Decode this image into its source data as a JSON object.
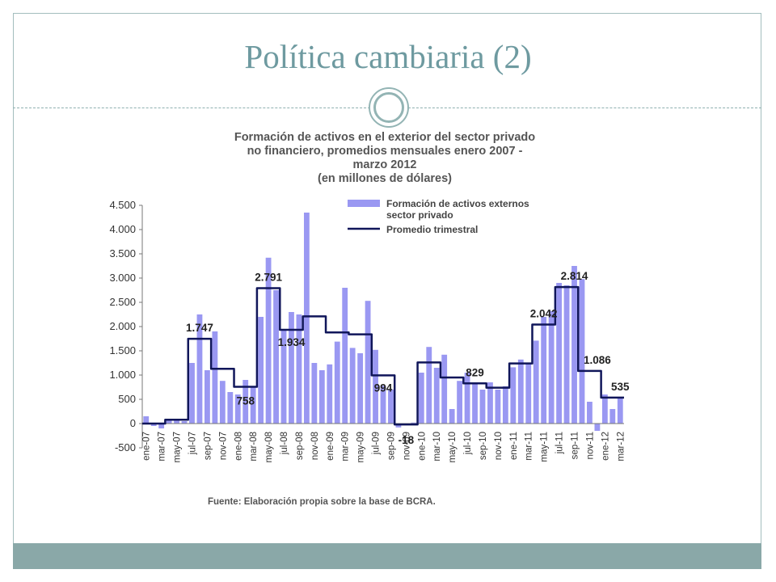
{
  "slide": {
    "title": "Política cambiaria (2)"
  },
  "colors": {
    "frame": "#a3bdbd",
    "title": "#6e9aa0",
    "footer_bar": "#8aa8a8",
    "bar": "#9a98f2",
    "line": "#10165a"
  },
  "chart_data": {
    "type": "bar",
    "title_lines": [
      "Formación de activos en el exterior del sector privado",
      "no financiero, promedios mensuales enero 2007 -",
      "marzo 2012",
      "(en millones de dólares)"
    ],
    "source": "Fuente: Elaboración propia sobre la base de BCRA.",
    "ylim": [
      -500,
      4500
    ],
    "yticks": [
      -500,
      0,
      500,
      1000,
      1500,
      2000,
      2500,
      3000,
      3500,
      4000,
      4500
    ],
    "ytick_labels": [
      "-500",
      "0",
      "500",
      "1.000",
      "1.500",
      "2.000",
      "2.500",
      "3.000",
      "3.500",
      "4.000",
      "4.500"
    ],
    "legend_position": "top-right",
    "categories": [
      "ene-07",
      "feb-07",
      "mar-07",
      "abr-07",
      "may-07",
      "jun-07",
      "jul-07",
      "ago-07",
      "sep-07",
      "oct-07",
      "nov-07",
      "dic-07",
      "ene-08",
      "feb-08",
      "mar-08",
      "abr-08",
      "may-08",
      "jun-08",
      "jul-08",
      "ago-08",
      "sep-08",
      "oct-08",
      "nov-08",
      "dic-08",
      "ene-09",
      "feb-09",
      "mar-09",
      "abr-09",
      "may-09",
      "jun-09",
      "jul-09",
      "ago-09",
      "sep-09",
      "oct-09",
      "nov-09",
      "dic-09",
      "ene-10",
      "feb-10",
      "mar-10",
      "abr-10",
      "may-10",
      "jun-10",
      "jul-10",
      "ago-10",
      "sep-10",
      "oct-10",
      "nov-10",
      "dic-10",
      "ene-11",
      "feb-11",
      "mar-11",
      "abr-11",
      "may-11",
      "jun-11",
      "jul-11",
      "ago-11",
      "sep-11",
      "oct-11",
      "nov-11",
      "dic-11",
      "ene-12",
      "feb-12",
      "mar-12"
    ],
    "x_tick_labels": [
      "ene-07",
      "mar-07",
      "may-07",
      "jul-07",
      "sep-07",
      "nov-07",
      "ene-08",
      "mar-08",
      "may-08",
      "jul-08",
      "sep-08",
      "nov-08",
      "ene-09",
      "mar-09",
      "may-09",
      "jul-09",
      "sep-09",
      "nov-09",
      "ene-10",
      "mar-10",
      "may-10",
      "jul-10",
      "sep-10",
      "nov-10",
      "ene-11",
      "mar-11",
      "may-11",
      "jul-11",
      "sep-11",
      "nov-11",
      "ene-12",
      "mar-12"
    ],
    "series": [
      {
        "name": "Formación de activos externos sector privado",
        "kind": "bar",
        "values": [
          150,
          -50,
          -100,
          80,
          100,
          50,
          1250,
          2250,
          1100,
          1900,
          880,
          650,
          600,
          900,
          750,
          2200,
          3420,
          2750,
          1950,
          2300,
          2250,
          4350,
          1250,
          1100,
          1220,
          1690,
          2800,
          1560,
          1450,
          2530,
          1520,
          780,
          700,
          -80,
          -30,
          20,
          1050,
          1580,
          1150,
          1420,
          300,
          880,
          1050,
          830,
          700,
          850,
          700,
          770,
          1160,
          1320,
          1250,
          1710,
          2200,
          2320,
          2900,
          2850,
          3250,
          2980,
          450,
          -150,
          600,
          300,
          550
        ]
      },
      {
        "name": "Promedio trimestral",
        "kind": "line",
        "values": [
          0,
          0,
          0,
          80,
          80,
          80,
          1747,
          1747,
          1747,
          1130,
          1130,
          1130,
          758,
          758,
          758,
          2791,
          2791,
          2791,
          1934,
          1934,
          1934,
          2210,
          2210,
          2210,
          1880,
          1880,
          1880,
          1840,
          1840,
          1840,
          994,
          994,
          994,
          -18,
          -18,
          -18,
          1260,
          1260,
          1260,
          950,
          950,
          950,
          829,
          829,
          829,
          740,
          740,
          740,
          1240,
          1240,
          1240,
          2042,
          2042,
          2042,
          2814,
          2814,
          2814,
          1086,
          1086,
          1086,
          535,
          535,
          535
        ]
      }
    ],
    "data_labels": [
      {
        "index": 7,
        "text": "1.747"
      },
      {
        "index": 13,
        "text": "758"
      },
      {
        "index": 16,
        "text": "2.791"
      },
      {
        "index": 19,
        "text": "1.934"
      },
      {
        "index": 31,
        "text": "994"
      },
      {
        "index": 34,
        "text": "-18"
      },
      {
        "index": 43,
        "text": "829"
      },
      {
        "index": 52,
        "text": "2.042"
      },
      {
        "index": 56,
        "text": "2.814"
      },
      {
        "index": 59,
        "text": "1.086"
      },
      {
        "index": 62,
        "text": "535"
      }
    ]
  }
}
